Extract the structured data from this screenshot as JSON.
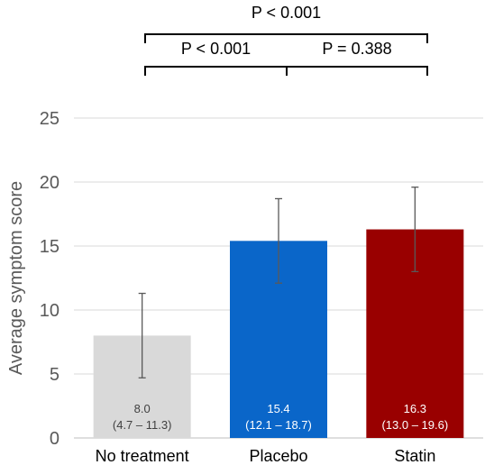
{
  "chart_data": {
    "type": "bar",
    "title": "",
    "xlabel": "",
    "ylabel": "Average symptom score",
    "ylim": [
      0,
      25
    ],
    "yticks": [
      0,
      5,
      10,
      15,
      20,
      25
    ],
    "grid": true,
    "categories": [
      "No treatment",
      "Placebo",
      "Statin"
    ],
    "values": [
      8.0,
      15.4,
      16.3
    ],
    "ci_low": [
      4.7,
      12.1,
      13.0
    ],
    "ci_high": [
      11.3,
      18.7,
      19.6
    ],
    "data_labels": [
      {
        "value": "8.0",
        "interval": "(4.7 – 11.3)"
      },
      {
        "value": "15.4",
        "interval": "(12.1 – 18.7)"
      },
      {
        "value": "16.3",
        "interval": "(13.0 – 19.6)"
      }
    ],
    "colors": [
      "#d9d9d9",
      "#0a66c9",
      "#990000"
    ],
    "label_colors": [
      "#404040",
      "#ffffff",
      "#ffffff"
    ],
    "comparisons": [
      {
        "from": 0,
        "to": 2,
        "label": "P < 0.001"
      },
      {
        "from": 0,
        "to": 1,
        "label": "P < 0.001"
      },
      {
        "from": 1,
        "to": 2,
        "label": "P = 0.388"
      }
    ]
  }
}
